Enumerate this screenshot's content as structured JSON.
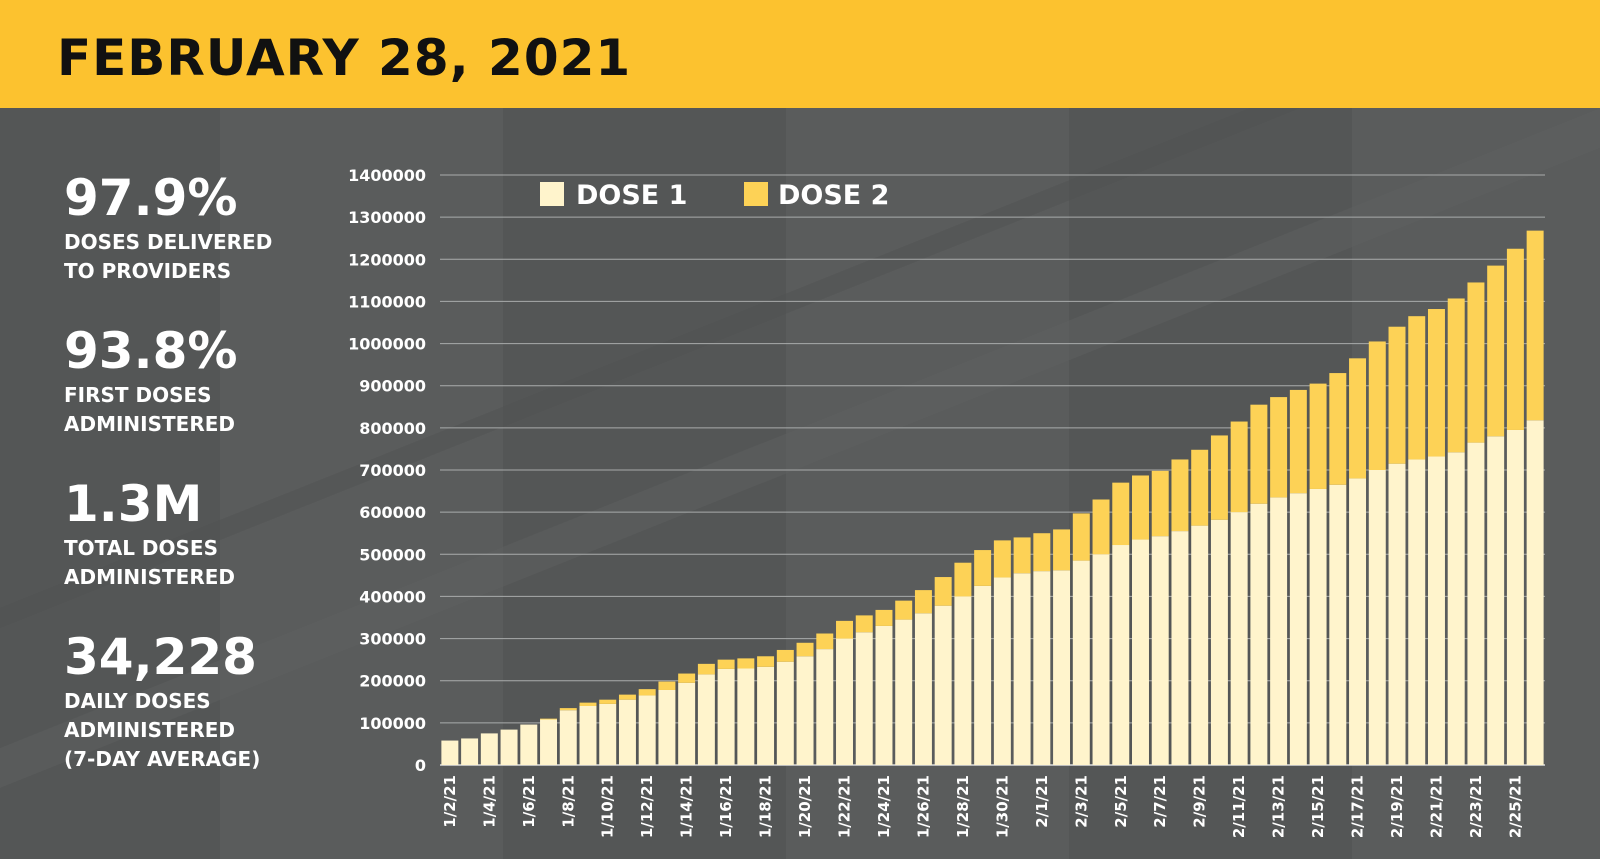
{
  "header": {
    "title": "FEBRUARY 28, 2021"
  },
  "stats": [
    {
      "value": "97.9%",
      "label": "DOSES DELIVERED\nTO PROVIDERS"
    },
    {
      "value": "93.8%",
      "label": "FIRST DOSES\nADMINISTERED"
    },
    {
      "value": "1.3M",
      "label": "TOTAL DOSES\nADMINISTERED"
    },
    {
      "value": "34,228",
      "label": "DAILY DOSES\nADMINISTERED\n(7-DAY AVERAGE)"
    }
  ],
  "colors": {
    "dose1": "#fff4cc",
    "dose2": "#fdd256",
    "banner": "#fcc22f",
    "background": "#545656"
  },
  "chart_data": {
    "type": "bar",
    "stacked": true,
    "ylim": [
      0,
      1400000
    ],
    "yticks": [
      0,
      100000,
      200000,
      300000,
      400000,
      500000,
      600000,
      700000,
      800000,
      900000,
      1000000,
      1100000,
      1200000,
      1300000,
      1400000
    ],
    "grid": "horizontal",
    "legend": "top-left",
    "categories": [
      "1/2/21",
      "1/3/21",
      "1/4/21",
      "1/5/21",
      "1/6/21",
      "1/7/21",
      "1/8/21",
      "1/9/21",
      "1/10/21",
      "1/11/21",
      "1/12/21",
      "1/13/21",
      "1/14/21",
      "1/15/21",
      "1/16/21",
      "1/17/21",
      "1/18/21",
      "1/19/21",
      "1/20/21",
      "1/21/21",
      "1/22/21",
      "1/23/21",
      "1/24/21",
      "1/25/21",
      "1/26/21",
      "1/27/21",
      "1/28/21",
      "1/29/21",
      "1/30/21",
      "1/31/21",
      "2/1/21",
      "2/2/21",
      "2/3/21",
      "2/4/21",
      "2/5/21",
      "2/6/21",
      "2/7/21",
      "2/8/21",
      "2/9/21",
      "2/10/21",
      "2/11/21",
      "2/12/21",
      "2/13/21",
      "2/14/21",
      "2/15/21",
      "2/16/21",
      "2/17/21",
      "2/18/21",
      "2/19/21",
      "2/20/21",
      "2/21/21",
      "2/22/21",
      "2/23/21",
      "2/24/21",
      "2/25/21",
      "2/26/21"
    ],
    "tick_labels": [
      "1/2/21",
      "",
      "1/4/21",
      "",
      "1/6/21",
      "",
      "1/8/21",
      "",
      "1/10/21",
      "",
      "1/12/21",
      "",
      "1/14/21",
      "",
      "1/16/21",
      "",
      "1/18/21",
      "",
      "1/20/21",
      "",
      "1/22/21",
      "",
      "1/24/21",
      "",
      "1/26/21",
      "",
      "1/28/21",
      "",
      "1/30/21",
      "",
      "2/1/21",
      "",
      "2/3/21",
      "",
      "2/5/21",
      "",
      "2/7/21",
      "",
      "2/9/21",
      "",
      "2/11/21",
      "",
      "2/13/21",
      "",
      "2/15/21",
      "",
      "2/17/21",
      "",
      "2/19/21",
      "",
      "2/21/21",
      "",
      "2/23/21",
      "",
      "2/25/21",
      ""
    ],
    "series": [
      {
        "name": "DOSE 1",
        "values": [
          58000,
          63000,
          75000,
          84000,
          96000,
          108000,
          130000,
          140000,
          145000,
          155000,
          165000,
          178000,
          195000,
          215000,
          228000,
          229000,
          233000,
          245000,
          258000,
          275000,
          300000,
          315000,
          330000,
          345000,
          360000,
          378000,
          400000,
          425000,
          445000,
          455000,
          460000,
          462000,
          485000,
          500000,
          522000,
          535000,
          543000,
          555000,
          568000,
          582000,
          600000,
          620000,
          635000,
          645000,
          655000,
          665000,
          680000,
          700000,
          715000,
          725000,
          732000,
          742000,
          765000,
          780000,
          795000,
          818000
        ]
      },
      {
        "name": "DOSE 2",
        "values": [
          0,
          0,
          0,
          0,
          0,
          2000,
          5000,
          8000,
          10000,
          12000,
          15000,
          20000,
          22000,
          25000,
          22000,
          24000,
          25000,
          28000,
          32000,
          37000,
          42000,
          40000,
          38000,
          45000,
          55000,
          68000,
          80000,
          85000,
          88000,
          85000,
          90000,
          97000,
          112000,
          130000,
          148000,
          152000,
          155000,
          170000,
          180000,
          200000,
          215000,
          235000,
          238000,
          245000,
          250000,
          265000,
          285000,
          305000,
          325000,
          340000,
          350000,
          365000,
          380000,
          405000,
          430000,
          450000
        ]
      }
    ]
  }
}
